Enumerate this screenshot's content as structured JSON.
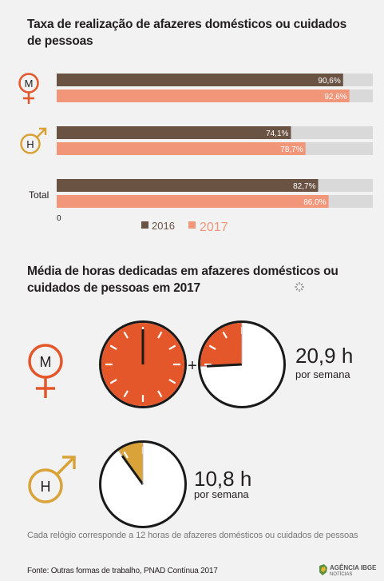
{
  "section1": {
    "title": "Taxa de realização de afazeres domésticos ou cuidados de pessoas",
    "groups": [
      {
        "label": "M",
        "icon": "female-symbol-icon"
      },
      {
        "label": "H",
        "icon": "male-symbol-icon"
      },
      {
        "label": "Total",
        "icon": ""
      }
    ],
    "axis_zero": "0",
    "legend": [
      {
        "label": "2016",
        "color": "#6b5344"
      },
      {
        "label": "2017",
        "color": "#f2967a"
      }
    ]
  },
  "chart_data": {
    "type": "bar",
    "orientation": "horizontal",
    "categories": [
      "M",
      "H",
      "Total"
    ],
    "series": [
      {
        "name": "2016",
        "values": [
          90.6,
          74.1,
          82.7
        ],
        "labels": [
          "90,6%",
          "74,1%",
          "82,7%"
        ],
        "color": "#6b5344"
      },
      {
        "name": "2017",
        "values": [
          92.6,
          78.7,
          86.0
        ],
        "labels": [
          "92,6%",
          "78,7%",
          "86,0%"
        ],
        "color": "#f2967a"
      }
    ],
    "xlim": [
      0,
      100
    ],
    "background_color": "#d9d9d9"
  },
  "section2": {
    "title": "Média de horas dedicadas em afazeres domésticos ou cuidados de pessoas em 2017",
    "woman": {
      "label": "M",
      "hours": 20.9,
      "hours_text": "20,9 h",
      "unit": "por semana",
      "clock_color": "#e4572a",
      "clocks": 2
    },
    "man": {
      "label": "H",
      "hours": 10.8,
      "hours_text": "10,8 h",
      "unit": "por semana",
      "clock_color": "#d9a33a",
      "clocks": 1
    },
    "plus": "+",
    "note": "Cada relógio corresponde a 12 horas de afazeres domésticos ou cuidados de pessoas"
  },
  "footer": {
    "source": "Fonte: Outras formas de trabalho, PNAD Contínua 2017",
    "logo_top": "AGÊNCIA IBGE",
    "logo_bottom": "NOTÍCIAS"
  }
}
